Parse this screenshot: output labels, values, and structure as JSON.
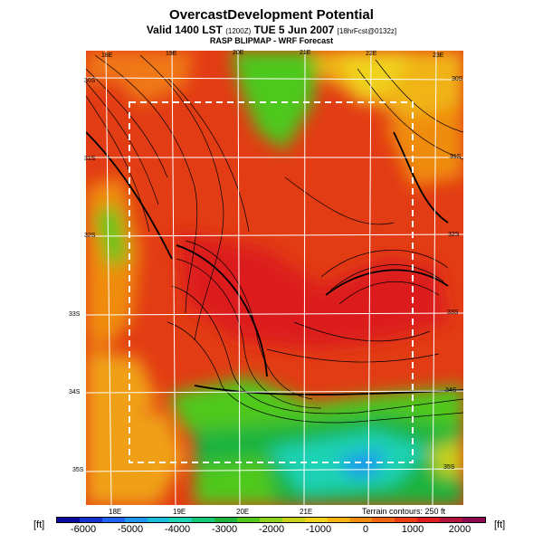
{
  "title": {
    "main": "OvercastDevelopment Potential",
    "valid": "Valid 1400 LST",
    "valid_small": "(1200Z)",
    "date": "TUE 5 Jun 2007",
    "fcst_small": "[18hrFcst@0132z]",
    "subtitle": "RASP BLIPMAP - WRF Forecast"
  },
  "map": {
    "top_lon_labels": [
      "18E",
      "19E",
      "20E",
      "21E",
      "22E",
      "23E"
    ],
    "bottom_lon_labels": [
      "18E",
      "19E",
      "20E",
      "21E"
    ],
    "left_lat_labels": [
      "30S",
      "31S",
      "32S",
      "33S",
      "34S",
      "35S"
    ],
    "right_lat_labels": [
      "30S",
      "31S",
      "32S",
      "33S",
      "34S",
      "35S"
    ],
    "terrain_note": "Terrain contours: 250 ft"
  },
  "colorbar": {
    "unit_left": "[ft]",
    "unit_right": "[ft]",
    "ticks": [
      "-6000",
      "-5000",
      "-4000",
      "-3000",
      "-2000",
      "-1000",
      "0",
      "1000",
      "2000"
    ],
    "colors": [
      "#0a0a9c",
      "#1432d2",
      "#1e64f0",
      "#1e96f0",
      "#19bedc",
      "#1ed2b4",
      "#14c878",
      "#1eb43c",
      "#50c81e",
      "#8cd21e",
      "#c8d21e",
      "#f0d21e",
      "#f5b414",
      "#f08c0f",
      "#f06414",
      "#eb3c14",
      "#dc1e1e",
      "#b4143c",
      "#8c0a50"
    ]
  }
}
